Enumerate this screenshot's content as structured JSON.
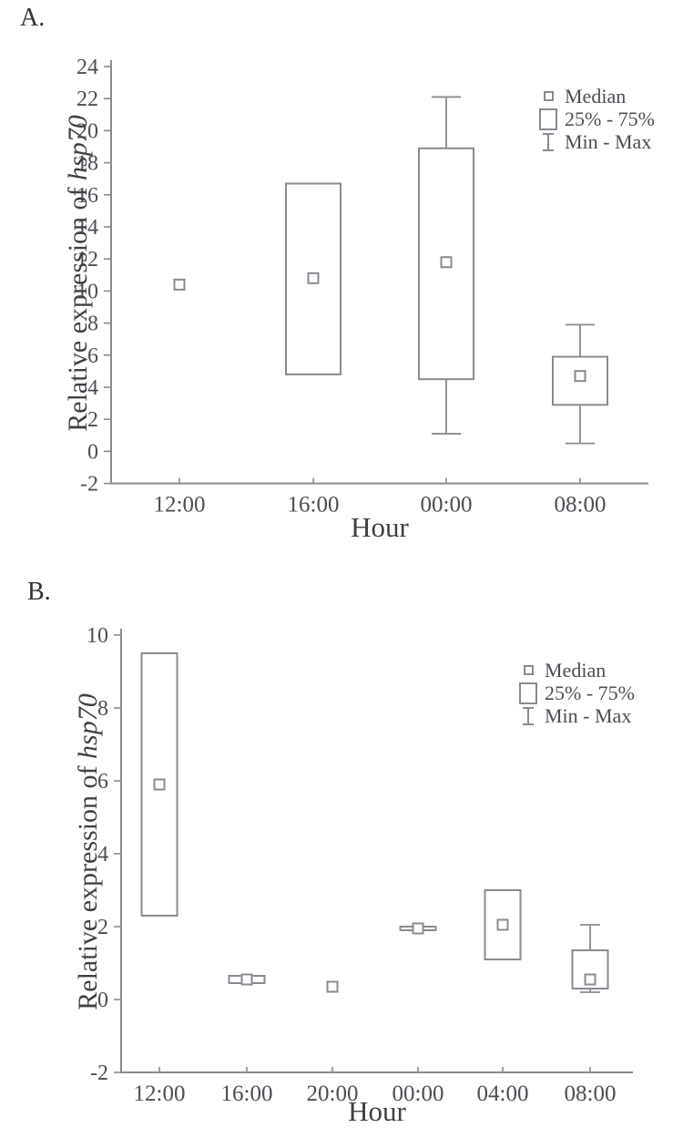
{
  "colors": {
    "line": "#888b91",
    "text": "#3e4144",
    "tick_text": "#4b4e53",
    "background": "#ffffff",
    "marker_fill": "#ffffff"
  },
  "chart_data": [
    {
      "type": "box",
      "panel_label": "A.",
      "ylabel_prefix": "Relative expression of ",
      "ylabel_gene": "hsp70",
      "xlabel": "Hour",
      "ylim": [
        -2,
        24
      ],
      "ytick_step": 2,
      "grid": false,
      "legend_position": "top-right",
      "categories": [
        "12:00",
        "16:00",
        "00:00",
        "08:00"
      ],
      "boxes": [
        {
          "category": "12:00",
          "median": 10.4,
          "q1": null,
          "q3": null,
          "min": null,
          "max": null
        },
        {
          "category": "16:00",
          "median": 10.8,
          "q1": 4.8,
          "q3": 16.7,
          "min": null,
          "max": null
        },
        {
          "category": "00:00",
          "median": 11.8,
          "q1": 4.5,
          "q3": 18.9,
          "min": 1.1,
          "max": 22.1
        },
        {
          "category": "08:00",
          "median": 4.7,
          "q1": 2.9,
          "q3": 5.9,
          "min": 0.5,
          "max": 7.9
        }
      ],
      "legend": [
        {
          "marker": "median-square",
          "label": "Median"
        },
        {
          "marker": "box",
          "label": "25% - 75%"
        },
        {
          "marker": "min-max",
          "label": "Min - Max"
        }
      ]
    },
    {
      "type": "box",
      "panel_label": "B.",
      "ylabel_prefix": "Relative expression of ",
      "ylabel_gene": "hsp70",
      "xlabel": "Hour",
      "ylim": [
        -2,
        10
      ],
      "ytick_step": 2,
      "grid": false,
      "legend_position": "top-right",
      "categories": [
        "12:00",
        "16:00",
        "20:00",
        "00:00",
        "04:00",
        "08:00"
      ],
      "boxes": [
        {
          "category": "12:00",
          "median": 5.9,
          "q1": 2.3,
          "q3": 9.5,
          "min": null,
          "max": null
        },
        {
          "category": "16:00",
          "median": 0.55,
          "q1": 0.45,
          "q3": 0.65,
          "min": null,
          "max": null
        },
        {
          "category": "20:00",
          "median": 0.35,
          "q1": null,
          "q3": null,
          "min": null,
          "max": null
        },
        {
          "category": "00:00",
          "median": 1.95,
          "q1": 1.9,
          "q3": 2.0,
          "min": null,
          "max": null
        },
        {
          "category": "04:00",
          "median": 2.05,
          "q1": 1.1,
          "q3": 3.0,
          "min": null,
          "max": null
        },
        {
          "category": "08:00",
          "median": 0.55,
          "q1": 0.3,
          "q3": 1.35,
          "min": 0.2,
          "max": 2.05
        }
      ],
      "legend": [
        {
          "marker": "median-square",
          "label": "Median"
        },
        {
          "marker": "box",
          "label": "25% - 75%"
        },
        {
          "marker": "min-max",
          "label": "Min - Max"
        }
      ]
    }
  ]
}
